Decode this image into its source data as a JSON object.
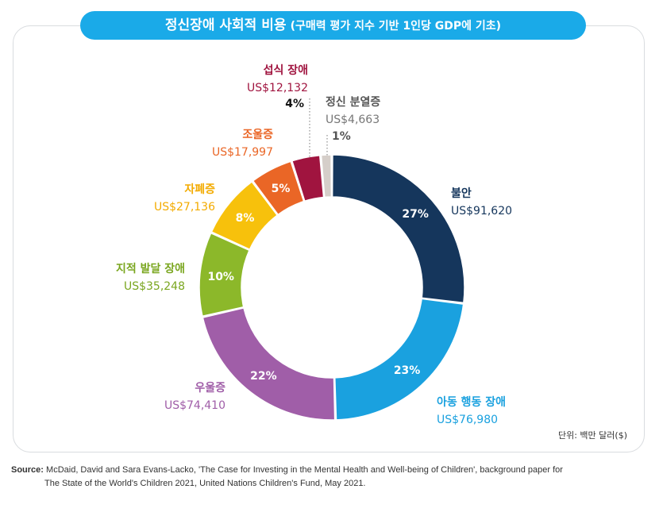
{
  "title": {
    "main": "정신장애 사회적 비용",
    "sub": "(구매력 평가 지수 기반 1인당 GDP에 기초)"
  },
  "unit_note": "단위: 백만 달러($)",
  "source": {
    "label": "Source:",
    "line1": "McDaid, David and Sara Evans-Lacko, 'The Case for Investing in the Mental Health and Well-being of Children', background paper for",
    "line2": "The State of the World's Children 2021, United Nations Children's Fund, May 2021."
  },
  "chart_data": {
    "type": "pie",
    "donut": true,
    "unit": "US$ millions",
    "series": [
      {
        "name": "불안",
        "value_label": "US$91,620",
        "value": 91620,
        "percent_label": "27%",
        "color": "#15365c"
      },
      {
        "name": "아동 행동 장애",
        "value_label": "US$76,980",
        "value": 76980,
        "percent_label": "23%",
        "color": "#1aa1df"
      },
      {
        "name": "우울증",
        "value_label": "US$74,410",
        "value": 74410,
        "percent_label": "22%",
        "color": "#a05ea8"
      },
      {
        "name": "지적 발달 장애",
        "value_label": "US$35,248",
        "value": 35248,
        "percent_label": "10%",
        "color": "#8cb82a"
      },
      {
        "name": "자폐증",
        "value_label": "US$27,136",
        "value": 27136,
        "percent_label": "8%",
        "color": "#f7c10c"
      },
      {
        "name": "조울증",
        "value_label": "US$17,997",
        "value": 17997,
        "percent_label": "5%",
        "color": "#ea6626"
      },
      {
        "name": "섭식 장애",
        "value_label": "US$12,132",
        "value": 12132,
        "percent_label": "4%",
        "color": "#a0143f"
      },
      {
        "name": "정신 분열증",
        "value_label": "US$4,663",
        "value": 4663,
        "percent_label": "1%",
        "color": "#d5cec9"
      }
    ]
  }
}
